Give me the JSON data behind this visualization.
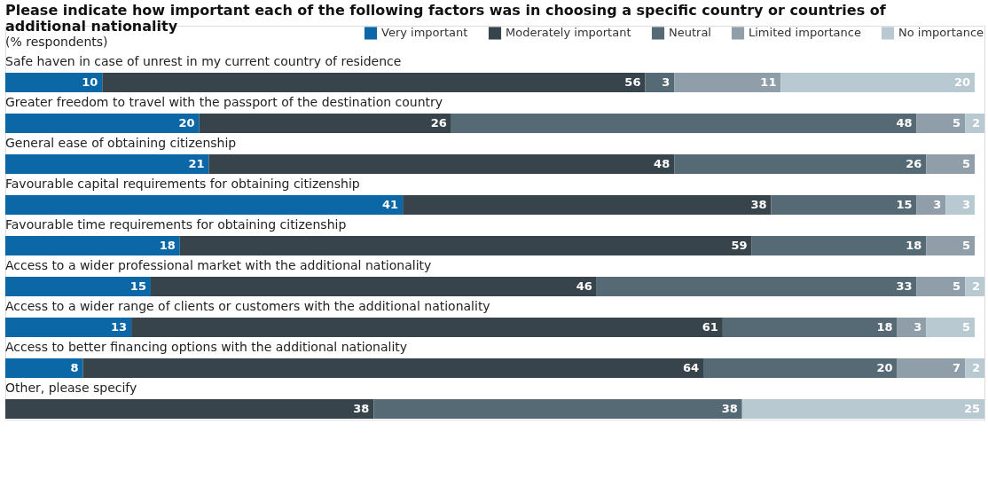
{
  "chart_data": {
    "type": "bar",
    "orientation": "horizontal",
    "stacked": true,
    "title": "Please indicate how important each of the following factors was in choosing a specific country or countries of additional nationality",
    "subtitle": "(% respondents)",
    "categories": [
      "Safe haven in case of unrest in my current country of residence",
      "Greater freedom to travel with the passport of the destination country",
      "General ease of obtaining citizenship",
      "Favourable capital requirements for obtaining citizenship",
      "Favourable time requirements for obtaining citizenship",
      "Access to a wider professional market with the additional nationality",
      "Access to a wider range of clients or customers with the additional nationality",
      "Access to better financing options with the additional nationality",
      "Other, please specify"
    ],
    "series": [
      {
        "name": "Very important",
        "color": "#0b67a6",
        "values": [
          10,
          20,
          21,
          41,
          18,
          15,
          13,
          8,
          null
        ]
      },
      {
        "name": "Moderately important",
        "color": "#37444c",
        "values": [
          56,
          26,
          48,
          38,
          59,
          46,
          61,
          64,
          38
        ]
      },
      {
        "name": "Neutral",
        "color": "#566a76",
        "values": [
          3,
          48,
          26,
          15,
          18,
          33,
          18,
          20,
          38
        ]
      },
      {
        "name": "Limited importance",
        "color": "#8f9ea9",
        "values": [
          11,
          5,
          5,
          3,
          5,
          5,
          3,
          7,
          null
        ]
      },
      {
        "name": "No importance",
        "color": "#b9c9d1",
        "values": [
          20,
          2,
          null,
          3,
          null,
          2,
          5,
          2,
          25
        ]
      }
    ],
    "xlim": [
      0,
      101
    ],
    "data_labels": true,
    "legend": "top right",
    "grid": false
  }
}
